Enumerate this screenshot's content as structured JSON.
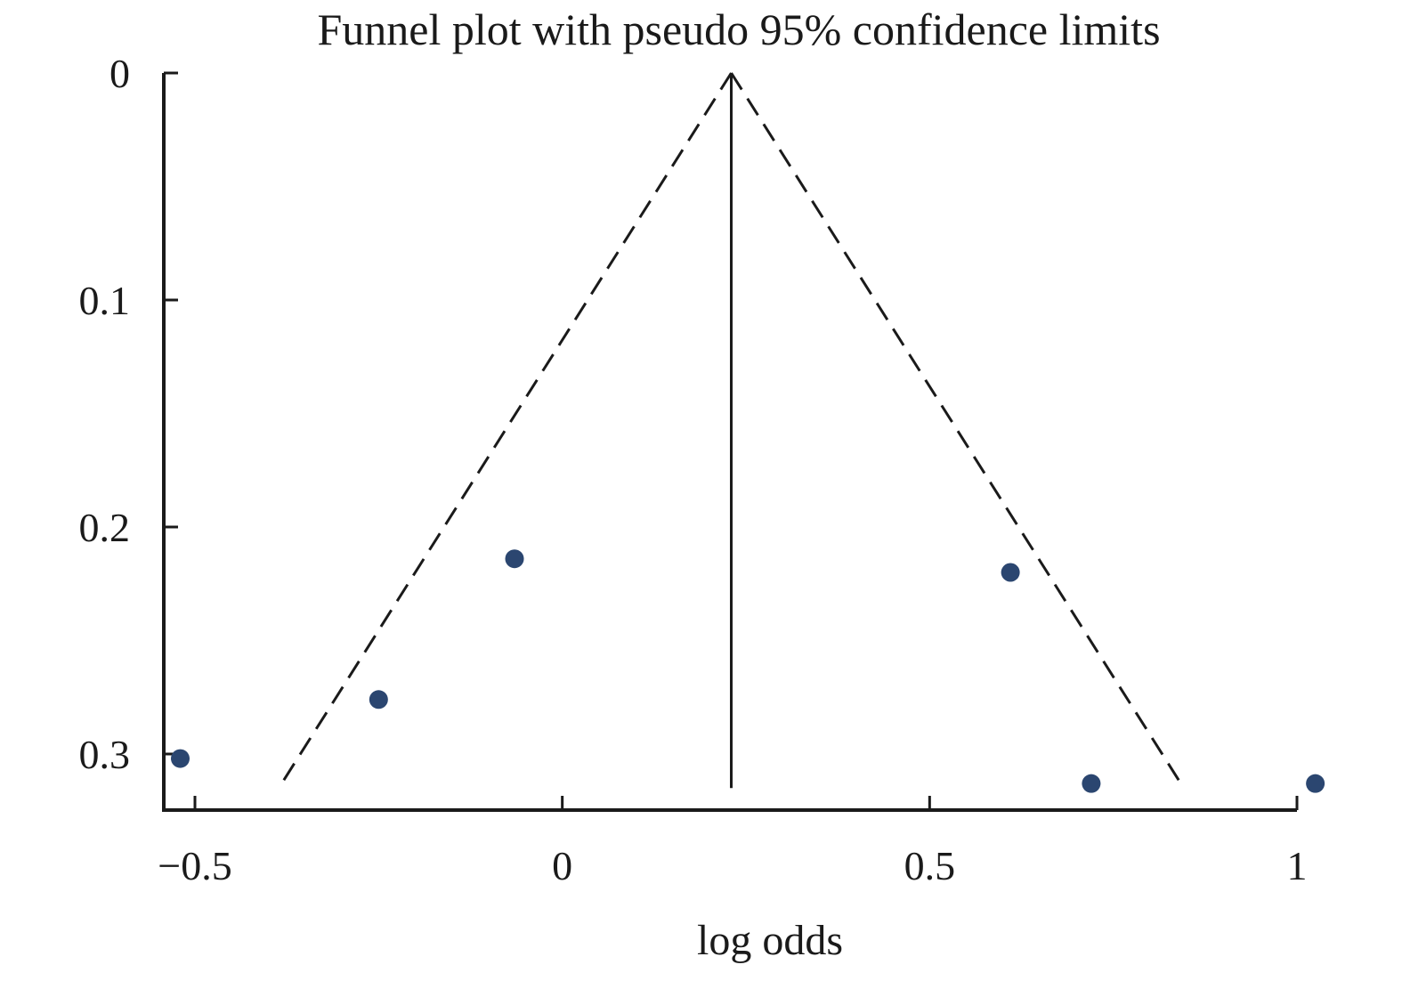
{
  "chart_data": {
    "type": "scatter",
    "title": "Funnel plot with pseudo 95% confidence limits",
    "xlabel": "log odds",
    "ylabel": "",
    "xlim": [
      -0.55,
      1.0
    ],
    "ylim": [
      0,
      0.323
    ],
    "y_inverted": true,
    "grid": false,
    "x_ticks": [
      -0.5,
      0,
      0.5,
      1
    ],
    "x_tick_labels": [
      "−0.5",
      "0",
      "0.5",
      "1"
    ],
    "y_ticks": [
      0,
      0.1,
      0.2,
      0.3
    ],
    "y_tick_labels": [
      "0",
      "0.1",
      "0.2",
      "0.3"
    ],
    "pooled_estimate": 0.23,
    "funnel": {
      "apex": {
        "x": 0.23,
        "y": 0
      },
      "left_end": {
        "x": -0.38,
        "y": 0.312
      },
      "right_end": {
        "x": 0.84,
        "y": 0.312
      },
      "pooled_line_end_y": 0.315
    },
    "points": [
      {
        "x": -0.52,
        "y": 0.302
      },
      {
        "x": -0.25,
        "y": 0.276
      },
      {
        "x": -0.065,
        "y": 0.214
      },
      {
        "x": 0.61,
        "y": 0.22
      },
      {
        "x": 0.72,
        "y": 0.313
      },
      {
        "x": 1.025,
        "y": 0.313
      }
    ],
    "colors": {
      "point": "#2b4670",
      "axis": "#1a1a1a",
      "funnel_line": "#1a1a1a"
    }
  }
}
